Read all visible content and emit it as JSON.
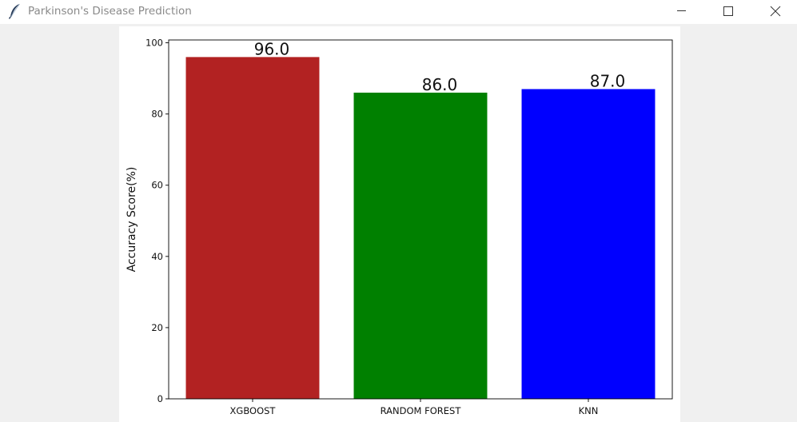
{
  "window": {
    "title": "Parkinson's Disease Prediction",
    "icon": "feather-icon",
    "controls": {
      "minimize": "minimize-icon",
      "maximize": "maximize-icon",
      "close": "close-icon"
    }
  },
  "chart_data": {
    "type": "bar",
    "title": "",
    "xlabel": "",
    "ylabel": "Accuracy Score(%)",
    "categories": [
      "XGBOOST",
      "RANDOM FOREST",
      "KNN"
    ],
    "values": [
      96.0,
      86.0,
      87.0
    ],
    "data_labels": [
      "96.0",
      "86.0",
      "87.0"
    ],
    "colors": [
      "#b22222",
      "#008000",
      "#0000ff"
    ],
    "ylim": [
      0,
      100.8
    ],
    "yticks": [
      0,
      20,
      40,
      60,
      80,
      100
    ],
    "ytick_labels": [
      "0",
      "20",
      "40",
      "60",
      "80",
      "100"
    ],
    "grid": false,
    "legend": "none"
  }
}
